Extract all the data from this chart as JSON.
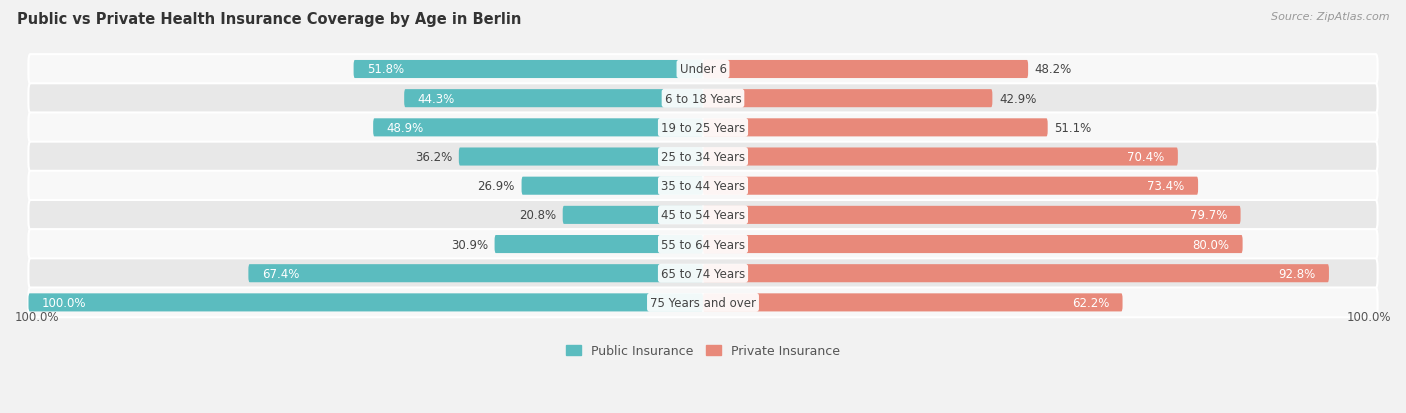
{
  "title": "Public vs Private Health Insurance Coverage by Age in Berlin",
  "source": "Source: ZipAtlas.com",
  "categories": [
    "Under 6",
    "6 to 18 Years",
    "19 to 25 Years",
    "25 to 34 Years",
    "35 to 44 Years",
    "45 to 54 Years",
    "55 to 64 Years",
    "65 to 74 Years",
    "75 Years and over"
  ],
  "public_values": [
    51.8,
    44.3,
    48.9,
    36.2,
    26.9,
    20.8,
    30.9,
    67.4,
    100.0
  ],
  "private_values": [
    48.2,
    42.9,
    51.1,
    70.4,
    73.4,
    79.7,
    80.0,
    92.8,
    62.2
  ],
  "public_color": "#5bbcbf",
  "private_color": "#e8897a",
  "bg_color": "#f2f2f2",
  "row_bg_even": "#f8f8f8",
  "row_bg_odd": "#e8e8e8",
  "title_fontsize": 10.5,
  "label_fontsize": 8.5,
  "value_fontsize": 8.5,
  "legend_fontsize": 9,
  "source_fontsize": 8,
  "bar_height": 0.62,
  "max_value": 100.0
}
